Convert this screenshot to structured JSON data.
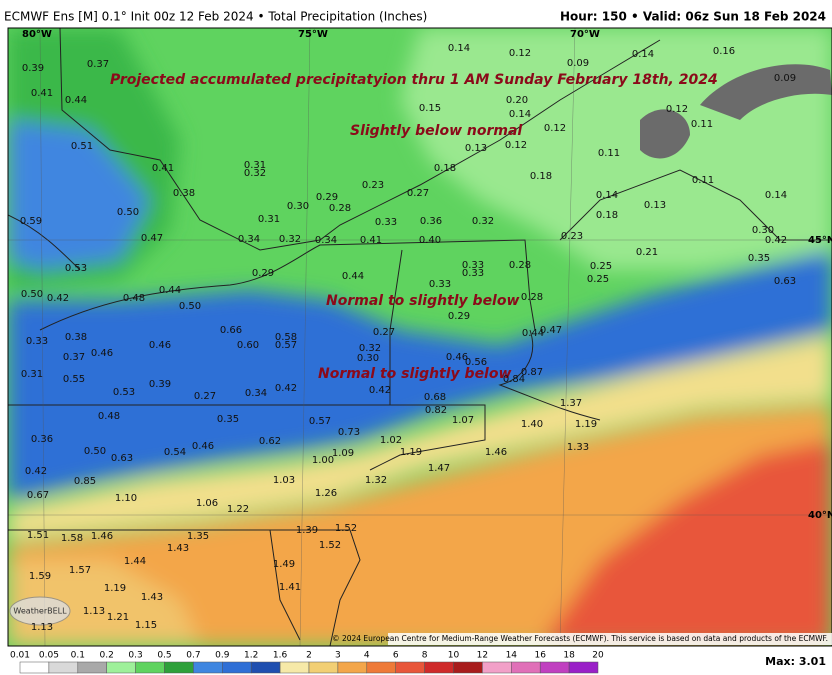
{
  "header": {
    "title": "ECMWF Ens [M] 0.1° Init 00z 12 Feb 2024 • Total Precipitation (Inches)",
    "valid": "Hour: 150 • Valid: 06z Sun 18 Feb 2024"
  },
  "annotations": [
    "Projected accumulated precipitatyion thru 1 AM Sunday February 18th, 2024",
    "Slightly below normal",
    "Normal to slightly below",
    "Normal to slightly below"
  ],
  "graticule": [
    "80°W",
    "75°W",
    "70°W",
    "45°N",
    "40°N"
  ],
  "logo": "WeatherBELL",
  "credit": "© 2024 European Centre for Medium-Range Weather Forecasts (ECMWF). This service is based on data and products of the ECMWF.",
  "legend": {
    "ticks": [
      "0.01",
      "0.05",
      "0.1",
      "0.2",
      "0.3",
      "0.5",
      "0.7",
      "0.9",
      "1.2",
      "1.6",
      "2",
      "3",
      "4",
      "6",
      "8",
      "10",
      "12",
      "14",
      "16",
      "18",
      "20"
    ],
    "colors": [
      "#ffffff",
      "#d9d9d9",
      "#a9a9a9",
      "#9ef09a",
      "#5fd35f",
      "#2ea03a",
      "#3f86e0",
      "#2f6fd6",
      "#1f4fb0",
      "#f6e9a8",
      "#f2cf74",
      "#f3a64a",
      "#ee7a38",
      "#e8563a",
      "#cf2a2a",
      "#a81c1c",
      "#f2a0c8",
      "#e070b8",
      "#c040c0",
      "#9a20c8"
    ],
    "max": "Max: 3.01"
  },
  "map": {
    "labels": [
      "0.39",
      "0.37",
      "0.41",
      "0.44",
      "0.51",
      "0.41",
      "0.38",
      "0.50",
      "0.59",
      "0.47",
      "0.53",
      "0.50",
      "0.42",
      "0.48",
      "0.44",
      "0.50",
      "0.33",
      "0.38",
      "0.46",
      "0.37",
      "0.31",
      "0.55",
      "0.53",
      "0.46",
      "0.39",
      "0.66",
      "0.60",
      "0.58",
      "0.57",
      "0.27",
      "0.34",
      "0.42",
      "0.48",
      "0.35",
      "0.36",
      "0.50",
      "0.63",
      "0.54",
      "0.46",
      "0.62",
      "0.57",
      "0.73",
      "0.42",
      "0.85",
      "0.67",
      "1.10",
      "1.06",
      "1.22",
      "1.00",
      "1.09",
      "1.03",
      "1.26",
      "1.51",
      "1.58",
      "1.46",
      "1.35",
      "1.43",
      "1.44",
      "1.57",
      "1.59",
      "1.19",
      "1.43",
      "1.13",
      "1.21",
      "1.15",
      "1.13",
      "1.39",
      "1.52",
      "1.52",
      "1.49",
      "1.41",
      "0.31",
      "0.32",
      "0.30",
      "0.29",
      "0.28",
      "0.31",
      "0.23",
      "0.27",
      "0.18",
      "0.15",
      "0.13",
      "0.12",
      "0.20",
      "0.14",
      "0.12",
      "0.18",
      "0.33",
      "0.36",
      "0.32",
      "0.34",
      "0.32",
      "0.34",
      "0.41",
      "0.40",
      "0.29",
      "0.44",
      "0.33",
      "0.33",
      "0.28",
      "0.33",
      "0.28",
      "0.29",
      "0.27",
      "0.32",
      "0.30",
      "0.46",
      "0.56",
      "0.44",
      "0.47",
      "0.84",
      "0.87",
      "0.68",
      "0.82",
      "0.42",
      "1.07",
      "1.02",
      "1.19",
      "1.46",
      "1.40",
      "1.37",
      "1.33",
      "1.19",
      "1.32",
      "1.47",
      "0.14",
      "0.12",
      "0.14",
      "0.16",
      "0.09",
      "0.09",
      "0.12",
      "0.11",
      "0.11",
      "0.11",
      "0.14",
      "0.14",
      "0.18",
      "0.13",
      "0.23",
      "0.30",
      "0.21",
      "0.42",
      "0.35",
      "0.25",
      "0.25",
      "0.63"
    ]
  }
}
